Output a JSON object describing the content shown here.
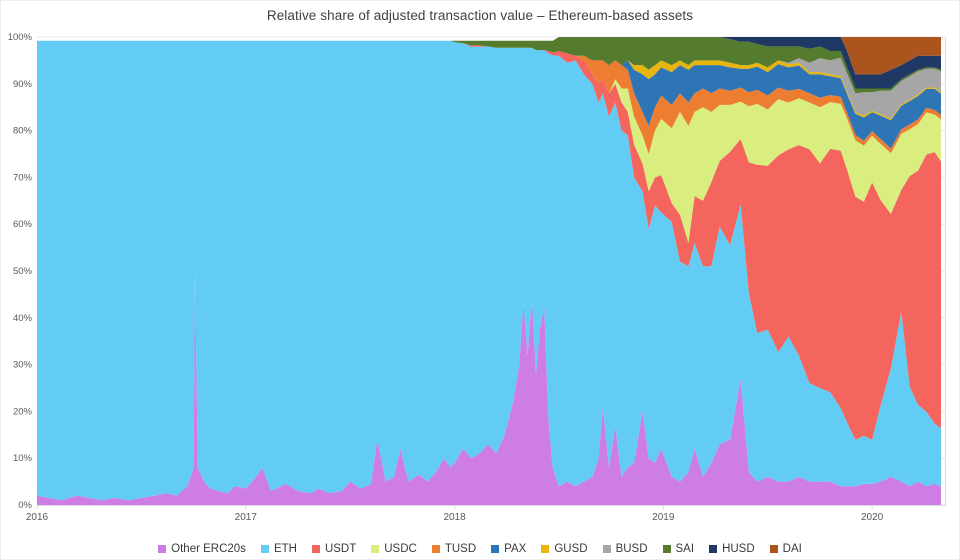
{
  "chart_data": {
    "type": "area",
    "variant": "100-percent-stacked",
    "title": "Relative share of adjusted transaction value – Ethereum-based assets",
    "xlabel": "",
    "ylabel": "",
    "xlim": [
      2016,
      2020.33
    ],
    "ylim": [
      0,
      100
    ],
    "grid": true,
    "legend_position": "bottom",
    "xticks": [
      2016,
      2017,
      2018,
      2019,
      2020
    ],
    "xtick_labels": [
      "2016",
      "2017",
      "2018",
      "2019",
      "2020"
    ],
    "yticks": [
      0,
      10,
      20,
      30,
      40,
      50,
      60,
      70,
      80,
      90,
      100
    ],
    "ytick_labels": [
      "0%",
      "10%",
      "20%",
      "30%",
      "40%",
      "50%",
      "60%",
      "70%",
      "80%",
      "90%",
      "100%"
    ],
    "series": [
      {
        "key": "other",
        "label": "Other ERC20s",
        "color": "#cf7de6"
      },
      {
        "key": "eth",
        "label": "ETH",
        "color": "#63ccf5"
      },
      {
        "key": "usdt",
        "label": "USDT",
        "color": "#f4665d"
      },
      {
        "key": "usdc",
        "label": "USDC",
        "color": "#d9ee7f"
      },
      {
        "key": "tusd",
        "label": "TUSD",
        "color": "#ed7d31"
      },
      {
        "key": "pax",
        "label": "PAX",
        "color": "#2e75b6"
      },
      {
        "key": "gusd",
        "label": "GUSD",
        "color": "#e9b50d"
      },
      {
        "key": "busd",
        "label": "BUSD",
        "color": "#a6a6a6"
      },
      {
        "key": "sai",
        "label": "SAI",
        "color": "#547b2e"
      },
      {
        "key": "husd",
        "label": "HUSD",
        "color": "#1f3864"
      },
      {
        "key": "dai",
        "label": "DAI",
        "color": "#ab541e"
      }
    ],
    "columns": [
      "t",
      "other",
      "eth",
      "usdt",
      "usdc",
      "tusd",
      "pax",
      "gusd",
      "busd",
      "sai",
      "husd",
      "dai"
    ],
    "points": [
      [
        2016.0,
        2,
        97.2,
        0,
        0,
        0,
        0,
        0,
        0,
        0,
        0,
        0
      ],
      [
        2016.06,
        1.5,
        97.7,
        0,
        0,
        0,
        0,
        0,
        0,
        0,
        0,
        0
      ],
      [
        2016.12,
        1,
        98.2,
        0,
        0,
        0,
        0,
        0,
        0,
        0,
        0,
        0
      ],
      [
        2016.19,
        2,
        97.2,
        0,
        0,
        0,
        0,
        0,
        0,
        0,
        0,
        0
      ],
      [
        2016.25,
        1.5,
        97.7,
        0,
        0,
        0,
        0,
        0,
        0,
        0,
        0,
        0
      ],
      [
        2016.31,
        1,
        98.2,
        0,
        0,
        0,
        0,
        0,
        0,
        0,
        0,
        0
      ],
      [
        2016.37,
        1.5,
        97.7,
        0,
        0,
        0,
        0,
        0,
        0,
        0,
        0,
        0
      ],
      [
        2016.44,
        1,
        98.2,
        0,
        0,
        0,
        0,
        0,
        0,
        0,
        0,
        0
      ],
      [
        2016.5,
        1.5,
        97.7,
        0,
        0,
        0,
        0,
        0,
        0,
        0,
        0,
        0
      ],
      [
        2016.56,
        2,
        97.2,
        0,
        0,
        0,
        0,
        0,
        0,
        0,
        0,
        0
      ],
      [
        2016.62,
        2.5,
        96.7,
        0,
        0,
        0,
        0,
        0,
        0,
        0,
        0,
        0
      ],
      [
        2016.67,
        2,
        97.2,
        0,
        0,
        0,
        0,
        0,
        0,
        0,
        0,
        0
      ],
      [
        2016.72,
        4,
        95.2,
        0,
        0,
        0,
        0,
        0,
        0,
        0,
        0,
        0
      ],
      [
        2016.75,
        8,
        91.2,
        0,
        0,
        0,
        0,
        0,
        0,
        0,
        0,
        0
      ],
      [
        2016.757,
        50,
        49.2,
        0,
        0,
        0,
        0,
        0,
        0,
        0,
        0,
        0
      ],
      [
        2016.77,
        8,
        91.2,
        0,
        0,
        0,
        0,
        0,
        0,
        0,
        0,
        0
      ],
      [
        2016.8,
        5,
        94.2,
        0,
        0,
        0,
        0,
        0,
        0,
        0,
        0,
        0
      ],
      [
        2016.83,
        3.5,
        95.7,
        0,
        0,
        0,
        0,
        0,
        0,
        0,
        0,
        0
      ],
      [
        2016.87,
        3,
        96.2,
        0,
        0,
        0,
        0,
        0,
        0,
        0,
        0,
        0
      ],
      [
        2016.91,
        2.5,
        96.7,
        0,
        0,
        0,
        0,
        0,
        0,
        0,
        0,
        0
      ],
      [
        2016.95,
        4,
        95.2,
        0,
        0,
        0,
        0,
        0,
        0,
        0,
        0,
        0
      ],
      [
        2017.0,
        3.5,
        95.7,
        0,
        0,
        0,
        0,
        0,
        0,
        0,
        0,
        0
      ],
      [
        2017.04,
        5.5,
        93.7,
        0,
        0,
        0,
        0,
        0,
        0,
        0,
        0,
        0
      ],
      [
        2017.08,
        8,
        91.2,
        0,
        0,
        0,
        0,
        0,
        0,
        0,
        0,
        0
      ],
      [
        2017.12,
        3,
        96.2,
        0,
        0,
        0,
        0,
        0,
        0,
        0,
        0,
        0
      ],
      [
        2017.19,
        4.5,
        94.7,
        0,
        0,
        0,
        0,
        0,
        0,
        0,
        0,
        0
      ],
      [
        2017.25,
        3,
        96.2,
        0,
        0,
        0,
        0,
        0,
        0,
        0,
        0,
        0
      ],
      [
        2017.31,
        2.5,
        96.7,
        0,
        0,
        0,
        0,
        0,
        0,
        0,
        0,
        0
      ],
      [
        2017.35,
        3.5,
        95.7,
        0,
        0,
        0,
        0,
        0,
        0,
        0,
        0,
        0
      ],
      [
        2017.4,
        2.5,
        96.7,
        0,
        0,
        0,
        0,
        0,
        0,
        0,
        0,
        0
      ],
      [
        2017.46,
        3,
        96.2,
        0,
        0,
        0,
        0,
        0,
        0,
        0,
        0,
        0
      ],
      [
        2017.5,
        5,
        94.2,
        0,
        0,
        0,
        0,
        0,
        0,
        0,
        0,
        0
      ],
      [
        2017.55,
        3.5,
        95.7,
        0,
        0,
        0,
        0,
        0,
        0,
        0,
        0,
        0
      ],
      [
        2017.6,
        4.5,
        94.7,
        0,
        0,
        0,
        0,
        0,
        0,
        0,
        0,
        0
      ],
      [
        2017.63,
        14,
        85.2,
        0,
        0,
        0,
        0,
        0,
        0,
        0,
        0,
        0
      ],
      [
        2017.67,
        5,
        94.2,
        0,
        0,
        0,
        0,
        0,
        0,
        0,
        0,
        0
      ],
      [
        2017.71,
        6,
        93.2,
        0,
        0,
        0,
        0,
        0,
        0,
        0,
        0,
        0
      ],
      [
        2017.74,
        12,
        87.2,
        0,
        0,
        0,
        0,
        0,
        0,
        0,
        0,
        0
      ],
      [
        2017.78,
        5,
        94.2,
        0,
        0,
        0,
        0,
        0,
        0,
        0,
        0,
        0
      ],
      [
        2017.83,
        6.5,
        92.7,
        0,
        0,
        0,
        0,
        0,
        0,
        0,
        0,
        0
      ],
      [
        2017.87,
        5,
        94.2,
        0,
        0,
        0,
        0,
        0,
        0,
        0,
        0,
        0
      ],
      [
        2017.91,
        7,
        92.2,
        0,
        0,
        0,
        0,
        0,
        0,
        0,
        0,
        0
      ],
      [
        2017.95,
        10,
        89.2,
        0,
        0,
        0,
        0,
        0,
        0,
        0,
        0,
        0
      ],
      [
        2017.98,
        8,
        91.2,
        0,
        0,
        0,
        0,
        0,
        0,
        0,
        0,
        0
      ],
      [
        2018.0,
        9,
        89.9,
        0,
        0,
        0,
        0,
        0,
        0,
        0.3,
        0,
        0
      ],
      [
        2018.04,
        12,
        86.7,
        0,
        0,
        0,
        0,
        0,
        0,
        0.5,
        0,
        0
      ],
      [
        2018.08,
        10,
        87.9,
        0.3,
        0,
        0,
        0,
        0,
        0,
        1,
        0,
        0
      ],
      [
        2018.12,
        11,
        86.9,
        0.3,
        0,
        0,
        0,
        0,
        0,
        1,
        0,
        0
      ],
      [
        2018.16,
        13,
        85.0,
        0,
        0,
        0,
        0,
        0,
        0,
        1.2,
        0,
        0
      ],
      [
        2018.2,
        11,
        86.7,
        0,
        0,
        0,
        0,
        0,
        0,
        1.5,
        0,
        0
      ],
      [
        2018.24,
        15,
        82.7,
        0,
        0,
        0,
        0,
        0,
        0,
        1.5,
        0,
        0
      ],
      [
        2018.28,
        22,
        75.7,
        0,
        0,
        0,
        0,
        0,
        0,
        1.5,
        0,
        0
      ],
      [
        2018.31,
        30,
        67.7,
        0,
        0,
        0,
        0,
        0,
        0,
        1.5,
        0,
        0
      ],
      [
        2018.33,
        43,
        54.7,
        0,
        0,
        0,
        0,
        0,
        0,
        1.5,
        0,
        0
      ],
      [
        2018.35,
        32,
        65.7,
        0,
        0,
        0,
        0,
        0,
        0,
        1.5,
        0,
        0
      ],
      [
        2018.37,
        44,
        53.7,
        0,
        0,
        0,
        0,
        0,
        0,
        1.5,
        0,
        0
      ],
      [
        2018.39,
        28,
        69.2,
        0,
        0,
        0,
        0,
        0,
        0,
        2,
        0,
        0
      ],
      [
        2018.41,
        38,
        59.2,
        0,
        0,
        0,
        0,
        0,
        0,
        2,
        0,
        0
      ],
      [
        2018.43,
        42,
        55.2,
        0,
        0,
        0,
        0,
        0,
        0,
        2,
        0,
        0
      ],
      [
        2018.45,
        18,
        78.5,
        0.5,
        0,
        0,
        0,
        0,
        0,
        2.2,
        0,
        0
      ],
      [
        2018.47,
        8,
        88.1,
        0.6,
        0,
        0,
        0,
        0,
        0,
        2.5,
        0,
        0
      ],
      [
        2018.5,
        4,
        92,
        1,
        0,
        0,
        0,
        0,
        0,
        3,
        0,
        0
      ],
      [
        2018.54,
        5,
        89.5,
        2,
        0,
        0,
        0,
        0,
        0,
        3.5,
        0,
        0
      ],
      [
        2018.58,
        4,
        91,
        1,
        0,
        0,
        0,
        0,
        0,
        4,
        0,
        0
      ],
      [
        2018.62,
        5,
        87,
        3,
        0,
        1,
        0,
        0,
        0,
        4,
        0,
        0
      ],
      [
        2018.66,
        6,
        84,
        2,
        0,
        3,
        0,
        0,
        0,
        5,
        0,
        0
      ],
      [
        2018.69,
        10,
        76,
        4,
        0,
        5,
        0,
        0,
        0,
        5,
        0,
        0
      ],
      [
        2018.71,
        21,
        67,
        3,
        0,
        4,
        0,
        0,
        0,
        5,
        0,
        0
      ],
      [
        2018.74,
        8,
        75,
        5,
        0,
        6,
        0,
        0,
        0,
        6,
        0,
        0
      ],
      [
        2018.77,
        17,
        69,
        4,
        1,
        4,
        0,
        0,
        0,
        5,
        0,
        0
      ],
      [
        2018.8,
        6,
        74,
        6,
        3,
        5,
        0,
        0,
        0,
        6,
        0,
        0
      ],
      [
        2018.83,
        8,
        71,
        5,
        5,
        4,
        2,
        0,
        0,
        5,
        0,
        0
      ],
      [
        2018.86,
        9,
        61,
        7,
        6,
        5,
        5,
        1,
        0,
        6,
        0,
        0
      ],
      [
        2018.9,
        20,
        47,
        6,
        6,
        5,
        8,
        2,
        0,
        6,
        0,
        0
      ],
      [
        2018.93,
        10,
        49,
        8,
        8,
        6,
        10,
        2,
        0,
        7,
        0,
        0
      ],
      [
        2018.96,
        9,
        55,
        6,
        10,
        5,
        7,
        2,
        0,
        6,
        0,
        0
      ],
      [
        2018.99,
        12,
        50.5,
        8,
        12,
        5,
        6,
        1.5,
        0,
        5,
        0,
        0
      ],
      [
        2019.04,
        6,
        54.5,
        4,
        16,
        5,
        7,
        1.5,
        0,
        6,
        0,
        0
      ],
      [
        2019.08,
        5,
        47,
        10,
        22,
        4,
        6,
        1,
        0,
        5,
        0,
        0
      ],
      [
        2019.12,
        7,
        44,
        5,
        25,
        5,
        7,
        1,
        0,
        6,
        0,
        0
      ],
      [
        2019.15,
        12,
        44,
        10,
        18,
        4,
        6,
        1,
        0,
        5,
        0,
        0
      ],
      [
        2019.19,
        6,
        45,
        14,
        20,
        4,
        5,
        1,
        0,
        5,
        0,
        0
      ],
      [
        2019.23,
        9,
        42,
        18,
        15,
        4,
        6,
        1,
        0,
        5,
        0,
        0
      ],
      [
        2019.27,
        13,
        46.5,
        14,
        12,
        3.5,
        5,
        1,
        0,
        5,
        0,
        0
      ],
      [
        2019.32,
        14,
        41.5,
        20,
        10,
        3,
        5,
        1,
        0,
        5,
        0.5,
        0
      ],
      [
        2019.37,
        27,
        37.2,
        14,
        8,
        3,
        4,
        0.8,
        0,
        5,
        1,
        0
      ],
      [
        2019.41,
        7,
        38.2,
        28,
        12,
        3,
        5,
        0.8,
        0,
        5,
        1,
        0
      ],
      [
        2019.45,
        5,
        31.7,
        36,
        13,
        3,
        5,
        0.8,
        0,
        4,
        1.5,
        0
      ],
      [
        2019.5,
        6,
        31.5,
        35,
        12,
        3,
        5,
        1,
        0,
        4.5,
        2,
        0
      ],
      [
        2019.55,
        5,
        27.7,
        42,
        12,
        2.5,
        5,
        0.8,
        0,
        3,
        2,
        0
      ],
      [
        2019.6,
        5,
        31,
        40,
        10,
        2.5,
        5,
        0.7,
        0.3,
        3.5,
        2,
        0
      ],
      [
        2019.65,
        6,
        25.9,
        45,
        10,
        2,
        5,
        0.6,
        1,
        2.5,
        2,
        0
      ],
      [
        2019.7,
        5,
        21,
        50,
        10,
        2,
        4,
        0.5,
        2,
        3,
        2.5,
        0
      ],
      [
        2019.75,
        5,
        20,
        48,
        12,
        2,
        5,
        0.5,
        3,
        2.5,
        2,
        0
      ],
      [
        2019.8,
        5,
        19.1,
        52,
        10,
        1.5,
        4,
        0.4,
        3,
        2,
        3,
        0
      ],
      [
        2019.85,
        4,
        16.7,
        55,
        10,
        1.5,
        4,
        0.4,
        4,
        1.4,
        3,
        0
      ],
      [
        2019.88,
        4,
        13.6,
        54,
        11,
        1.2,
        4,
        0.4,
        4,
        1.3,
        3.5,
        3
      ],
      [
        2019.92,
        4,
        9.9,
        52,
        12,
        1.2,
        4.5,
        0.4,
        4,
        1,
        3,
        8
      ],
      [
        2019.96,
        4.5,
        10.3,
        50,
        12,
        1,
        5,
        0.4,
        5,
        0.8,
        3,
        8
      ],
      [
        2020.0,
        4.5,
        9.4,
        55,
        10,
        1,
        4,
        0.3,
        4,
        0.8,
        3,
        8
      ],
      [
        2020.04,
        5,
        16.2,
        44,
        12,
        1,
        5,
        0.3,
        5,
        0.5,
        3,
        8
      ],
      [
        2020.09,
        6,
        23.2,
        33,
        13,
        1,
        6,
        0.3,
        6,
        0.5,
        4,
        7
      ],
      [
        2020.14,
        5,
        36.3,
        26,
        12,
        1,
        5,
        0.3,
        5,
        0.4,
        3,
        6
      ],
      [
        2020.18,
        4,
        21.3,
        45,
        10,
        1,
        5,
        0.3,
        5,
        0.4,
        3,
        5
      ],
      [
        2020.22,
        5,
        16.4,
        50,
        10,
        1,
        5,
        0.3,
        5,
        0.3,
        3,
        4
      ],
      [
        2020.26,
        4,
        15.9,
        55,
        9,
        1,
        4,
        0.3,
        4,
        0.3,
        2.5,
        4
      ],
      [
        2020.3,
        4.5,
        12.9,
        58,
        8,
        1,
        4.5,
        0.3,
        4,
        0.3,
        2.5,
        4
      ],
      [
        2020.33,
        4,
        12.4,
        57,
        9,
        1,
        4.5,
        0.3,
        4.5,
        0.3,
        3,
        4
      ]
    ],
    "colors": {
      "grid": "#e9e9e9",
      "axis_line": "#d9d9d9",
      "tick_text": "#595959",
      "title_text": "#404040"
    }
  }
}
